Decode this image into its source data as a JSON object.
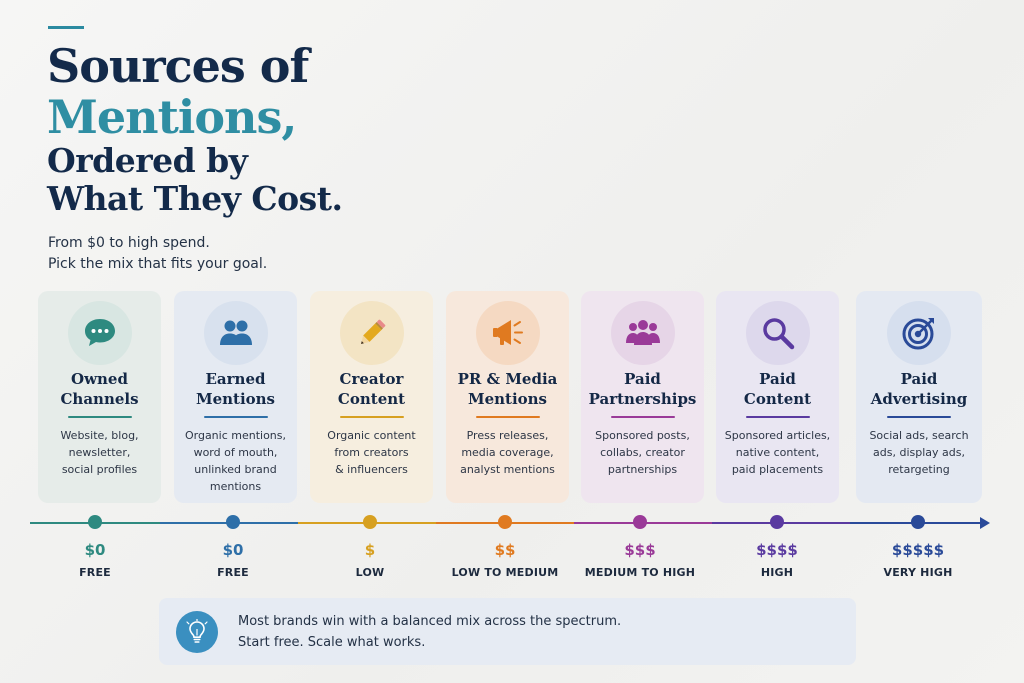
{
  "header": {
    "title_line1": "Sources of",
    "title_line2": "Mentions,",
    "title_line3": "Ordered by",
    "title_line4": "What They Cost.",
    "subtitle_line1": "From $0 to high spend.",
    "subtitle_line2": "Pick the mix that fits your goal."
  },
  "cards": [
    {
      "name_line1": "Owned",
      "name_line2": "Channels",
      "desc_line1": "Website, blog,",
      "desc_line2": "newsletter,",
      "desc_line3": "social profiles",
      "desc_line4": "",
      "icon": "chat-bubble-icon",
      "color": "#2e8a80",
      "price": "$0",
      "tier": "FREE"
    },
    {
      "name_line1": "Earned",
      "name_line2": "Mentions",
      "desc_line1": "Organic mentions,",
      "desc_line2": "word of mouth,",
      "desc_line3": "unlinked brand",
      "desc_line4": "mentions",
      "icon": "people-icon",
      "color": "#2e6fa8",
      "price": "$0",
      "tier": "FREE"
    },
    {
      "name_line1": "Creator",
      "name_line2": "Content",
      "desc_line1": "Organic content",
      "desc_line2": "from creators",
      "desc_line3": "& influencers",
      "desc_line4": "",
      "icon": "pencil-icon",
      "color": "#d7a020",
      "price": "$",
      "tier": "LOW"
    },
    {
      "name_line1": "PR & Media",
      "name_line2": "Mentions",
      "desc_line1": "Press releases,",
      "desc_line2": "media coverage,",
      "desc_line3": "analyst mentions",
      "desc_line4": "",
      "icon": "megaphone-icon",
      "color": "#e07a20",
      "price": "$$",
      "tier": "LOW TO MEDIUM"
    },
    {
      "name_line1": "Paid",
      "name_line2": "Partnerships",
      "desc_line1": "Sponsored posts,",
      "desc_line2": "collabs, creator",
      "desc_line3": "partnerships",
      "desc_line4": "",
      "icon": "group-icon",
      "color": "#9a3a98",
      "price": "$$$",
      "tier": "MEDIUM TO HIGH"
    },
    {
      "name_line1": "Paid",
      "name_line2": "Content",
      "desc_line1": "Sponsored articles,",
      "desc_line2": "native content,",
      "desc_line3": "paid placements",
      "desc_line4": "",
      "icon": "magnifier-icon",
      "color": "#5a3aa0",
      "price": "$$$$",
      "tier": "HIGH"
    },
    {
      "name_line1": "Paid",
      "name_line2": "Advertising",
      "desc_line1": "Social ads, search",
      "desc_line2": "ads, display ads,",
      "desc_line3": "retargeting",
      "desc_line4": "",
      "icon": "target-icon",
      "color": "#2a4a98",
      "price": "$$$$$",
      "tier": "VERY HIGH"
    }
  ],
  "callout": {
    "line1": "Most brands win with a balanced mix across the spectrum.",
    "line2": "Start free. Scale what works.",
    "icon": "lightbulb-icon"
  }
}
